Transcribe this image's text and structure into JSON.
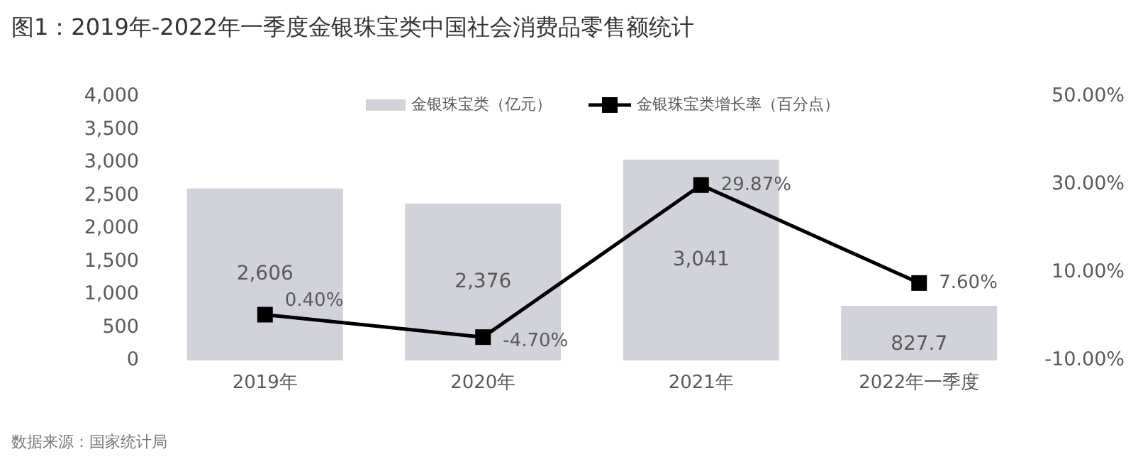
{
  "chart_data": {
    "type": "bar",
    "title": "图1：2019年-2022年一季度金银珠宝类中国社会消费品零售额统计",
    "categories": [
      "2019年",
      "2020年",
      "2021年",
      "2022年一季度"
    ],
    "series": [
      {
        "name": "金银珠宝类（亿元）",
        "color": "#d2d2da",
        "values": [
          2606,
          2376,
          3041,
          827.7
        ],
        "value_labels": [
          "2,606",
          "2,376",
          "3,041",
          "827.7"
        ]
      },
      {
        "name": "金银珠宝类增长率（百分点）",
        "type": "line",
        "axis": "y2",
        "color": "#000000",
        "marker": "square",
        "values": [
          0.4,
          -4.7,
          29.87,
          7.6
        ],
        "value_labels": [
          "0.40%",
          "-4.70%",
          "29.87%",
          "7.60%"
        ]
      }
    ],
    "ylim": [
      0,
      4000
    ],
    "yticks": [
      0,
      500,
      {
        "value": 1000,
        "label": "1,000"
      },
      {
        "value": 1500,
        "label": "1,500"
      },
      {
        "value": 2000,
        "label": "2,000"
      },
      {
        "value": 2500,
        "label": "2,500"
      },
      {
        "value": 3000,
        "label": "3,000"
      },
      {
        "value": 3500,
        "label": "3,500"
      },
      {
        "value": 4000,
        "label": "4,000"
      }
    ],
    "y2lim": [
      -10,
      50
    ],
    "y2ticks": [
      {
        "value": -10,
        "label": "-10.00%"
      },
      {
        "value": 10,
        "label": "10.00%"
      },
      {
        "value": 30,
        "label": "30.00%"
      },
      {
        "value": 50,
        "label": "50.00%"
      }
    ],
    "grid": false,
    "legend": "top",
    "annotations": [
      "数据来源：国家统计局"
    ]
  }
}
